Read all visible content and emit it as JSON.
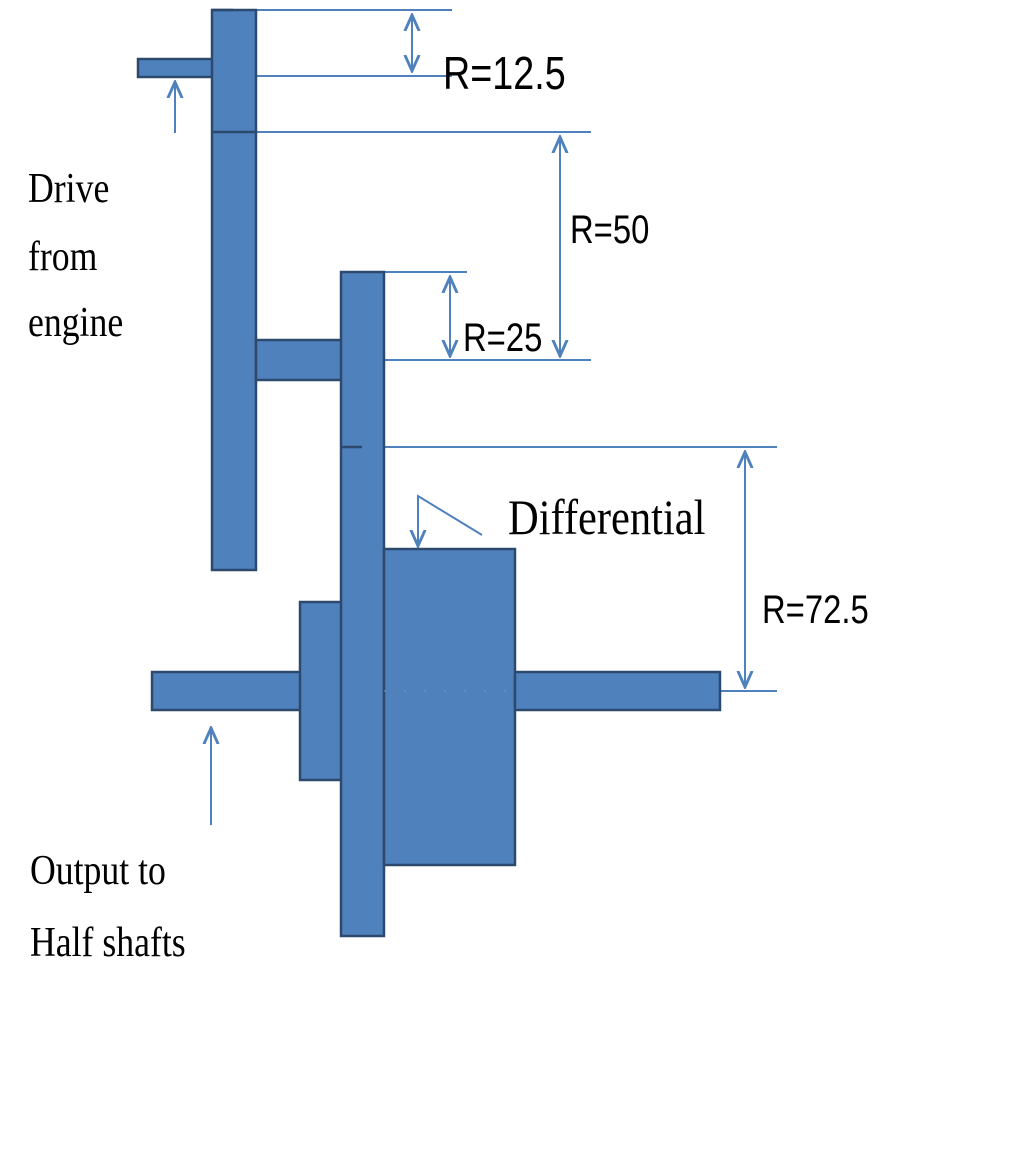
{
  "colors": {
    "component_fill": "#4f81bd",
    "component_stroke": "#2d4a6e",
    "dimension_line": "#4f81bd",
    "text": "#000000"
  },
  "labels": {
    "r_12_5": "R=12.5",
    "r_50": "R=50",
    "r_25": "R=25",
    "r_72_5": "R=72.5",
    "differential": "Differential",
    "drive_line1": "Drive",
    "drive_line2": "from",
    "drive_line3": "engine",
    "output_line1": "Output to",
    "output_line2": "Half shafts"
  }
}
